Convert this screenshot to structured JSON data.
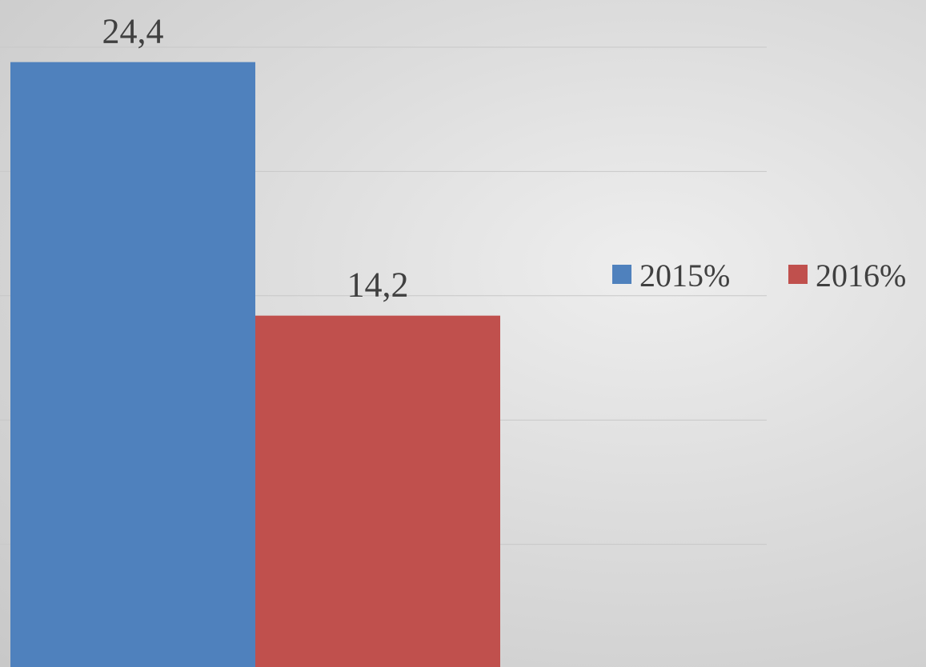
{
  "chart_data": {
    "type": "bar",
    "categories": [
      null
    ],
    "series": [
      {
        "name": "2015%",
        "color": "#4f81bd",
        "values": [
          24.4
        ],
        "value_labels": [
          "24,4"
        ]
      },
      {
        "name": "2016%",
        "color": "#c0504d",
        "values": [
          14.2
        ],
        "value_labels": [
          "14,2"
        ]
      }
    ],
    "ylim": [
      0,
      25
    ],
    "yticks": [
      0,
      5,
      10,
      15,
      20,
      25
    ],
    "grid": true,
    "tick_labels": false,
    "legend": "right"
  }
}
